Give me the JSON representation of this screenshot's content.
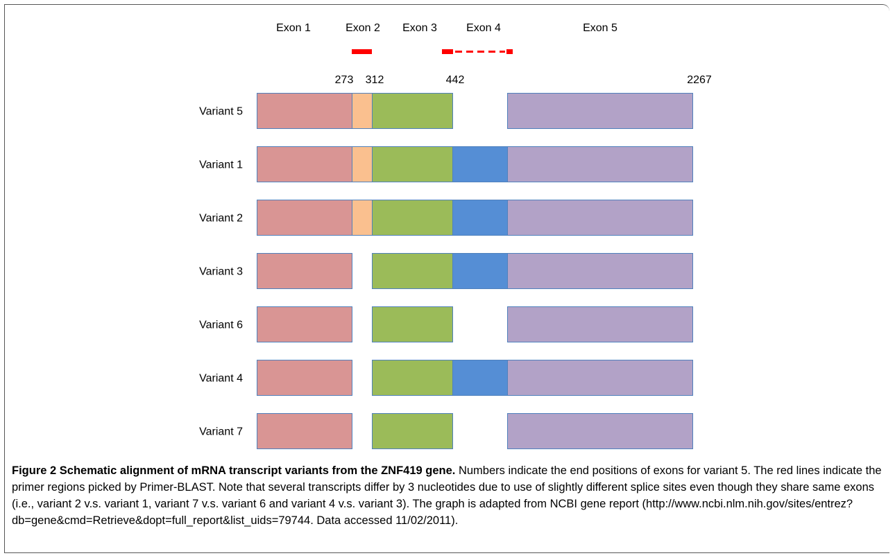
{
  "exon_labels": [
    "Exon 1",
    "Exon 2",
    "Exon 3",
    "Exon 4",
    "Exon 5"
  ],
  "position_labels": [
    "273",
    "312",
    "442",
    "2267"
  ],
  "variants": [
    {
      "label": "Variant 5",
      "exons": [
        1,
        2,
        3,
        5
      ]
    },
    {
      "label": "Variant 1",
      "exons": [
        1,
        2,
        3,
        4,
        5
      ]
    },
    {
      "label": "Variant 2",
      "exons": [
        1,
        2,
        3,
        4,
        5
      ]
    },
    {
      "label": "Variant 3",
      "exons": [
        1,
        3,
        4,
        5
      ]
    },
    {
      "label": "Variant 6",
      "exons": [
        1,
        3,
        5
      ]
    },
    {
      "label": "Variant 4",
      "exons": [
        1,
        3,
        4,
        5
      ]
    },
    {
      "label": "Variant 7",
      "exons": [
        1,
        3,
        5
      ]
    }
  ],
  "colors": {
    "exon1": "#d99594",
    "exon2": "#fac08f",
    "exon3": "#9bbb59",
    "exon4": "#558ed5",
    "exon5": "#b2a2c7",
    "border": "#4f81bd",
    "primer": "#ff0000"
  },
  "caption": {
    "title": "Figure 2 Schematic alignment of mRNA transcript variants from the ZNF419 gene.",
    "body": " Numbers indicate the end positions of exons for variant 5. The red lines indicate the primer regions picked by Primer-BLAST. Note that several transcripts differ by 3 nucleotides due to use of slightly different splice sites even though they share same exons (i.e., variant 2 v.s. variant 1, variant 7 v.s. variant 6 and variant 4 v.s. variant 3). The graph is adapted from NCBI gene report (http://www.ncbi.nlm.nih.gov/sites/entrez?db=gene&cmd=Retrieve&dopt=full_report&list_uids=79744. Data accessed 11/02/2011)."
  }
}
